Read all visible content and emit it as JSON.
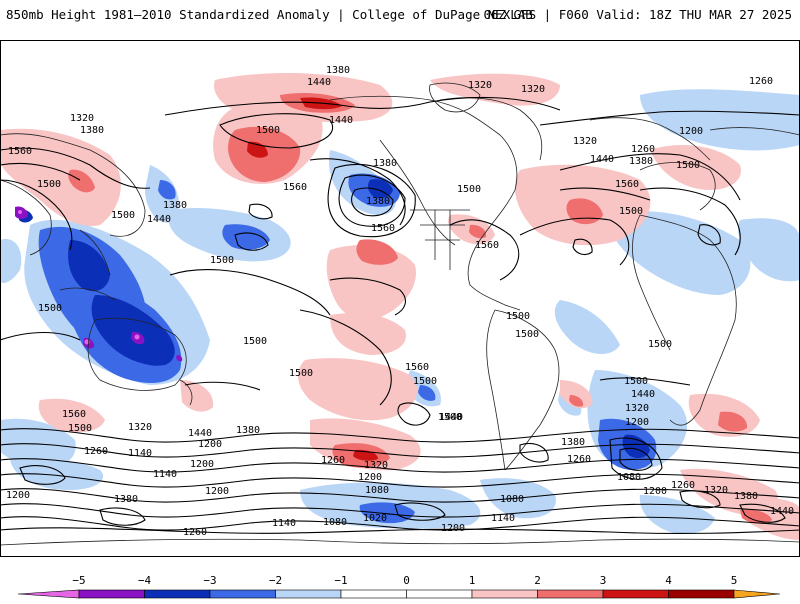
{
  "header": {
    "title_left": "850mb Height 1981–2010 Standardized Anomaly | College of DuPage NEXLAB",
    "title_right": "06Z GFS | F060 Valid: 18Z THU MAR 27 2025"
  },
  "colors": {
    "neg5": "#e466e4",
    "neg4": "#8a12c4",
    "neg3": "#0c2fb8",
    "neg2": "#3c6ae6",
    "neg1": "#b9d6f7",
    "pos1": "#f9c4c4",
    "pos2": "#ef6e6e",
    "pos3": "#cc1414",
    "pos4": "#9a0000",
    "pos5": "#f5a51f",
    "land_line": "#222222",
    "contour_line": "#000000"
  },
  "legend": {
    "tick_labels": [
      "−5",
      "−4",
      "−3",
      "−2",
      "−1",
      "0",
      "1",
      "2",
      "3",
      "4",
      "5"
    ]
  },
  "contour_labels": {
    "northern": [
      "1380",
      "1440",
      "1320",
      "1320",
      "1260",
      "1320",
      "1380",
      "1560",
      "1500",
      "1560",
      "1440",
      "1380",
      "1500",
      "1380",
      "1500",
      "1440",
      "1560",
      "1320",
      "1200",
      "1260",
      "1380",
      "1440",
      "1500",
      "1560",
      "1500",
      "1560",
      "1500",
      "1380"
    ],
    "tropics": [
      "1500",
      "1500",
      "1500",
      "1500",
      "1500",
      "1500",
      "1500",
      "1500",
      "1560"
    ],
    "southern": [
      "1560",
      "1500",
      "1320",
      "1260",
      "1140",
      "1200",
      "1140",
      "1440",
      "1380",
      "1320",
      "1260",
      "1200",
      "1500",
      "1440",
      "1380",
      "1260",
      "1500",
      "1440",
      "1320",
      "1200",
      "1080",
      "1200",
      "1260",
      "1320",
      "1380",
      "1440"
    ],
    "antarctic": [
      "1200",
      "1380",
      "1200",
      "1140",
      "1260",
      "1080",
      "1020",
      "1080",
      "1200",
      "1140",
      "1080",
      "1200"
    ]
  }
}
